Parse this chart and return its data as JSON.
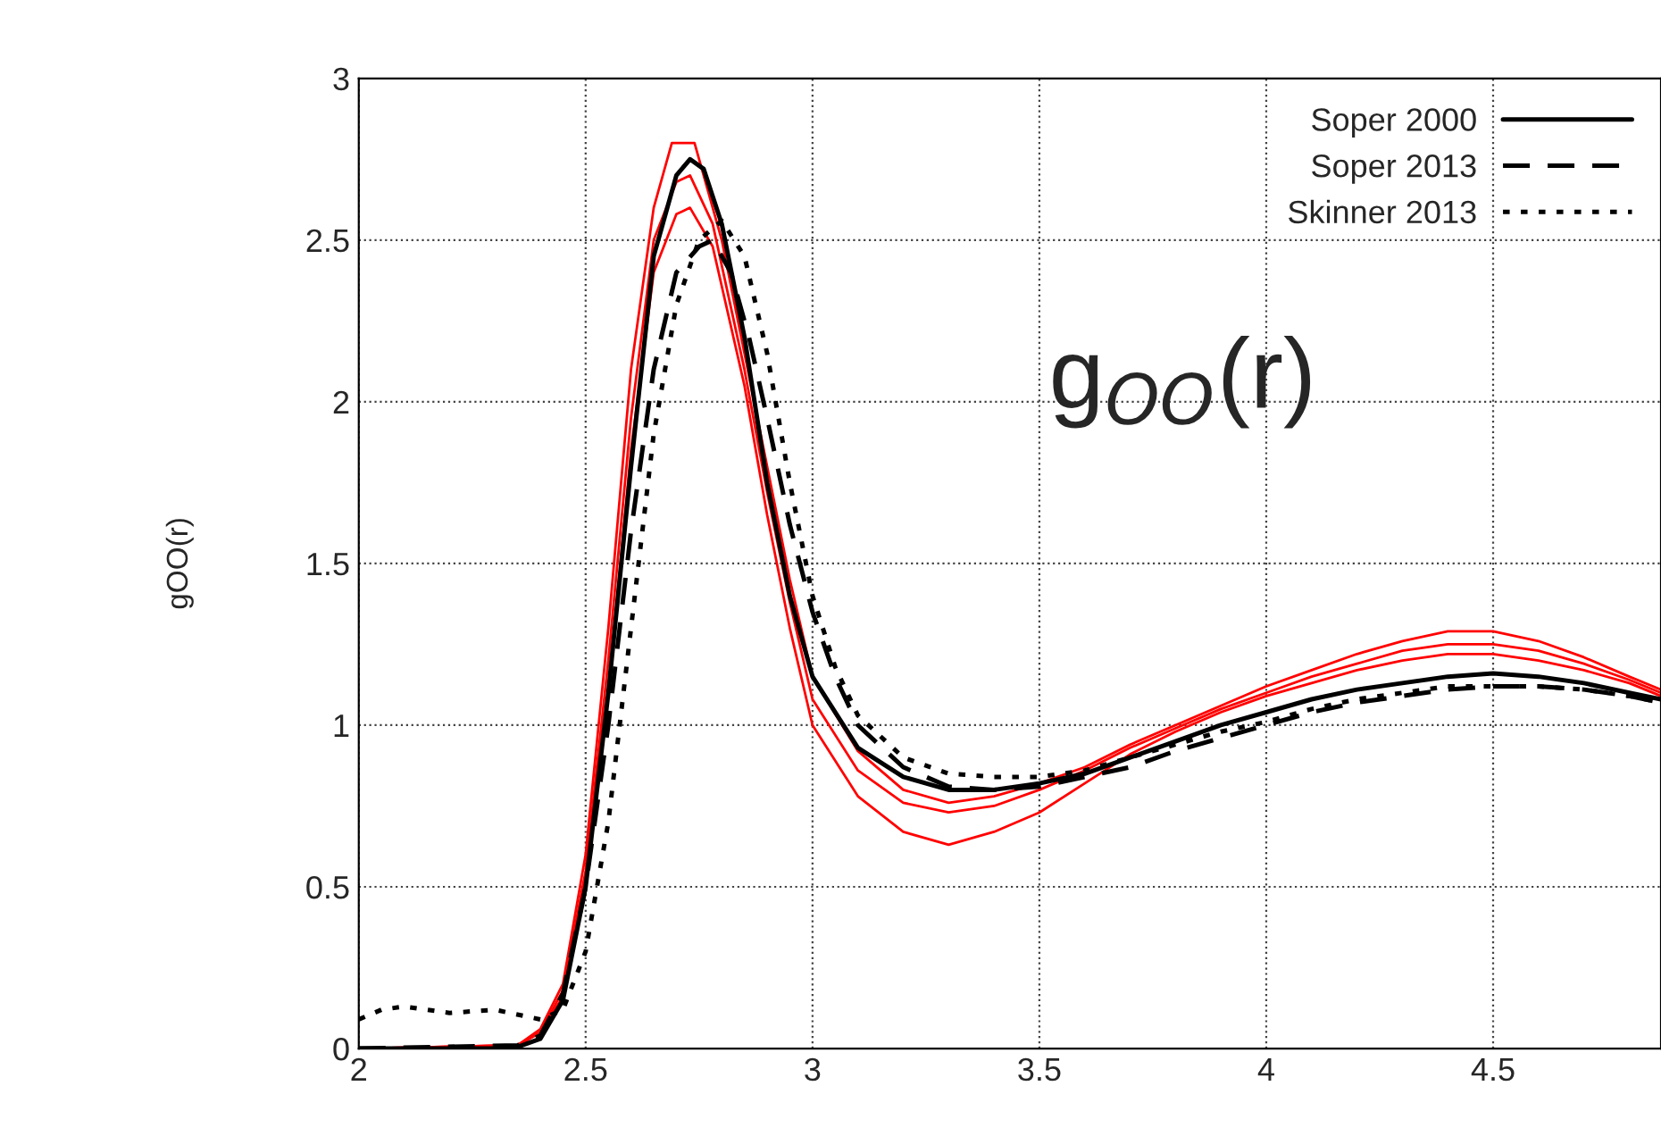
{
  "chart_data": {
    "type": "line",
    "ylabel": "gOO(r)",
    "annotations": [
      "g$_{OO}$(r)"
    ],
    "xlim": [
      2,
      4.87
    ],
    "xticks": [
      2,
      2.5,
      3,
      3.5,
      4,
      4.5
    ],
    "ylim": [
      0,
      3
    ],
    "yticks": [
      0,
      0.5,
      1,
      1.5,
      2,
      2.5,
      3
    ],
    "grid": true,
    "legend": "top right",
    "marker": "none",
    "series": [
      {
        "color": "#ff0000",
        "line_style": "solid",
        "x": [
          2.0,
          2.35,
          2.4,
          2.45,
          2.5,
          2.55,
          2.6,
          2.65,
          2.69,
          2.74,
          2.8,
          2.85,
          2.9,
          2.95,
          3.0,
          3.1,
          3.2,
          3.3,
          3.4,
          3.5,
          3.6,
          3.7,
          3.8,
          3.9,
          4.0,
          4.1,
          4.2,
          4.3,
          4.4,
          4.5,
          4.6,
          4.7,
          4.8,
          4.87
        ],
        "values": [
          0,
          0.01,
          0.06,
          0.2,
          0.6,
          1.3,
          2.1,
          2.6,
          2.8,
          2.8,
          2.5,
          2.15,
          1.8,
          1.45,
          1.15,
          0.92,
          0.8,
          0.76,
          0.78,
          0.82,
          0.87,
          0.94,
          1.0,
          1.06,
          1.12,
          1.17,
          1.22,
          1.26,
          1.29,
          1.29,
          1.26,
          1.21,
          1.15,
          1.11
        ]
      },
      {
        "color": "#ff0000",
        "line_style": "solid",
        "x": [
          2.0,
          2.35,
          2.4,
          2.45,
          2.5,
          2.55,
          2.6,
          2.65,
          2.7,
          2.73,
          2.78,
          2.85,
          2.9,
          2.95,
          3.0,
          3.1,
          3.2,
          3.3,
          3.4,
          3.5,
          3.6,
          3.7,
          3.8,
          3.9,
          4.0,
          4.1,
          4.2,
          4.3,
          4.4,
          4.5,
          4.6,
          4.7,
          4.8,
          4.87
        ],
        "values": [
          0,
          0.01,
          0.05,
          0.18,
          0.55,
          1.2,
          1.95,
          2.5,
          2.68,
          2.7,
          2.55,
          2.1,
          1.72,
          1.38,
          1.08,
          0.86,
          0.76,
          0.73,
          0.75,
          0.8,
          0.86,
          0.93,
          0.99,
          1.05,
          1.1,
          1.15,
          1.19,
          1.23,
          1.25,
          1.25,
          1.23,
          1.19,
          1.14,
          1.1
        ]
      },
      {
        "color": "#ff0000",
        "line_style": "solid",
        "x": [
          2.0,
          2.35,
          2.4,
          2.45,
          2.5,
          2.55,
          2.6,
          2.65,
          2.7,
          2.73,
          2.78,
          2.85,
          2.9,
          2.95,
          3.0,
          3.1,
          3.2,
          3.3,
          3.4,
          3.5,
          3.6,
          3.7,
          3.8,
          3.9,
          4.0,
          4.1,
          4.2,
          4.3,
          4.4,
          4.5,
          4.6,
          4.7,
          4.8,
          4.87
        ],
        "values": [
          0,
          0.01,
          0.05,
          0.16,
          0.5,
          1.1,
          1.85,
          2.4,
          2.58,
          2.6,
          2.48,
          2.05,
          1.65,
          1.3,
          1.0,
          0.78,
          0.67,
          0.63,
          0.67,
          0.73,
          0.82,
          0.91,
          0.98,
          1.04,
          1.09,
          1.13,
          1.17,
          1.2,
          1.22,
          1.22,
          1.2,
          1.17,
          1.13,
          1.09
        ]
      },
      {
        "name": "Soper 2000",
        "color": "#000000",
        "line_style": "solid",
        "x": [
          2.0,
          2.3,
          2.35,
          2.4,
          2.45,
          2.5,
          2.55,
          2.6,
          2.65,
          2.7,
          2.73,
          2.76,
          2.8,
          2.85,
          2.9,
          2.95,
          3.0,
          3.1,
          3.2,
          3.3,
          3.4,
          3.5,
          3.6,
          3.7,
          3.8,
          3.9,
          4.0,
          4.1,
          4.2,
          4.3,
          4.4,
          4.5,
          4.6,
          4.7,
          4.8,
          4.87
        ],
        "values": [
          0,
          0,
          0.005,
          0.03,
          0.15,
          0.5,
          1.1,
          1.8,
          2.45,
          2.7,
          2.75,
          2.72,
          2.55,
          2.2,
          1.75,
          1.4,
          1.15,
          0.93,
          0.84,
          0.8,
          0.8,
          0.82,
          0.85,
          0.9,
          0.95,
          1.0,
          1.04,
          1.08,
          1.11,
          1.13,
          1.15,
          1.16,
          1.15,
          1.13,
          1.1,
          1.08
        ]
      },
      {
        "name": "Soper 2013",
        "color": "#000000",
        "line_style": "dashed",
        "x": [
          2.0,
          2.35,
          2.4,
          2.45,
          2.5,
          2.55,
          2.6,
          2.65,
          2.7,
          2.75,
          2.78,
          2.82,
          2.86,
          2.9,
          2.95,
          3.0,
          3.05,
          3.1,
          3.2,
          3.3,
          3.4,
          3.5,
          3.6,
          3.7,
          3.8,
          3.9,
          4.0,
          4.1,
          4.2,
          4.3,
          4.4,
          4.5,
          4.6,
          4.7,
          4.8,
          4.87
        ],
        "values": [
          0,
          0.01,
          0.04,
          0.17,
          0.5,
          1.0,
          1.6,
          2.1,
          2.4,
          2.48,
          2.5,
          2.4,
          2.2,
          1.95,
          1.62,
          1.35,
          1.15,
          1.0,
          0.87,
          0.81,
          0.8,
          0.81,
          0.84,
          0.87,
          0.92,
          0.96,
          1.0,
          1.04,
          1.07,
          1.09,
          1.11,
          1.12,
          1.12,
          1.11,
          1.09,
          1.07
        ]
      },
      {
        "name": "Skinner 2013",
        "color": "#000000",
        "line_style": "dotted",
        "x": [
          2.0,
          2.05,
          2.1,
          2.2,
          2.3,
          2.4,
          2.45,
          2.5,
          2.55,
          2.6,
          2.65,
          2.7,
          2.75,
          2.8,
          2.85,
          2.9,
          2.95,
          3.0,
          3.05,
          3.1,
          3.2,
          3.3,
          3.4,
          3.5,
          3.6,
          3.7,
          3.8,
          3.9,
          4.0,
          4.1,
          4.2,
          4.3,
          4.4,
          4.5,
          4.6,
          4.7,
          4.8,
          4.87
        ],
        "values": [
          0.09,
          0.12,
          0.13,
          0.11,
          0.12,
          0.09,
          0.12,
          0.3,
          0.7,
          1.3,
          1.9,
          2.3,
          2.5,
          2.56,
          2.45,
          2.15,
          1.75,
          1.4,
          1.18,
          1.03,
          0.9,
          0.85,
          0.84,
          0.84,
          0.86,
          0.9,
          0.94,
          0.98,
          1.01,
          1.05,
          1.08,
          1.1,
          1.12,
          1.12,
          1.12,
          1.11,
          1.09,
          1.07
        ]
      }
    ]
  }
}
